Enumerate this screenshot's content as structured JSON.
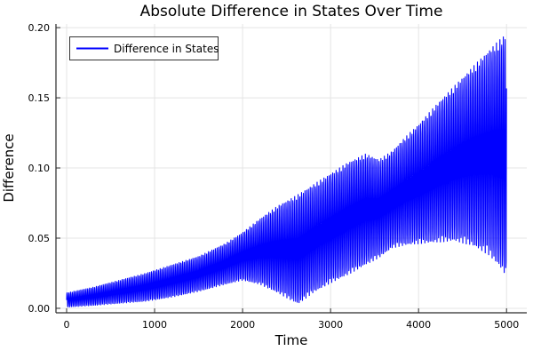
{
  "title": "Absolute Difference in States Over Time",
  "axes": {
    "xlabel": "Time",
    "ylabel": "Difference",
    "x_tick_labels": [
      "0",
      "1000",
      "2000",
      "3000",
      "4000",
      "5000"
    ],
    "x_tick_values": [
      0,
      1000,
      2000,
      3000,
      4000,
      5000
    ],
    "y_tick_labels": [
      "0.00",
      "0.05",
      "0.10",
      "0.15",
      "0.20"
    ],
    "y_tick_values": [
      0,
      0.05,
      0.1,
      0.15,
      0.2
    ],
    "xlim": [
      -121,
      5230
    ],
    "ylim": [
      -0.0032,
      0.2026
    ]
  },
  "legend": {
    "label": "Difference in States"
  },
  "colors": {
    "series": "#0000ff",
    "grid": "#e4e4e4",
    "spine": "#2a2a2a",
    "tick_text": "#000000",
    "background": "#ffffff",
    "legend_border": "#333333"
  },
  "chart_data": {
    "type": "line",
    "title": "Absolute Difference in States Over Time",
    "xlabel": "Time",
    "ylabel": "Difference",
    "xlim": [
      0,
      5000
    ],
    "ylim": [
      0,
      0.2
    ],
    "grid": true,
    "legend_position": "top-left",
    "series": [
      {
        "name": "Difference in States",
        "color": "#0000ff",
        "description": "Fast oscillation |x1-x2| between slowly varying envelopes; beat node near t=2630, upper-envelope hump ~0.110 at t=3400, growth to ~0.196 at t=5000",
        "oscillation_period": 19.6,
        "sample_step": 2.6,
        "envelope": {
          "t": [
            0,
            300,
            600,
            900,
            1200,
            1500,
            1800,
            2000,
            2200,
            2400,
            2630,
            2800,
            3000,
            3200,
            3400,
            3550,
            3700,
            3850,
            4000,
            4200,
            4400,
            4600,
            4800,
            4900,
            5000
          ],
          "lower": [
            0.0008,
            0.002,
            0.0035,
            0.005,
            0.008,
            0.012,
            0.017,
            0.02,
            0.017,
            0.011,
            0.003,
            0.011,
            0.018,
            0.024,
            0.031,
            0.036,
            0.043,
            0.045,
            0.046,
            0.047,
            0.048,
            0.045,
            0.038,
            0.031,
            0.023
          ],
          "upper": [
            0.011,
            0.015,
            0.02,
            0.025,
            0.031,
            0.037,
            0.046,
            0.054,
            0.064,
            0.073,
            0.081,
            0.088,
            0.096,
            0.104,
            0.11,
            0.106,
            0.112,
            0.122,
            0.131,
            0.145,
            0.158,
            0.171,
            0.184,
            0.19,
            0.196
          ]
        }
      }
    ]
  }
}
